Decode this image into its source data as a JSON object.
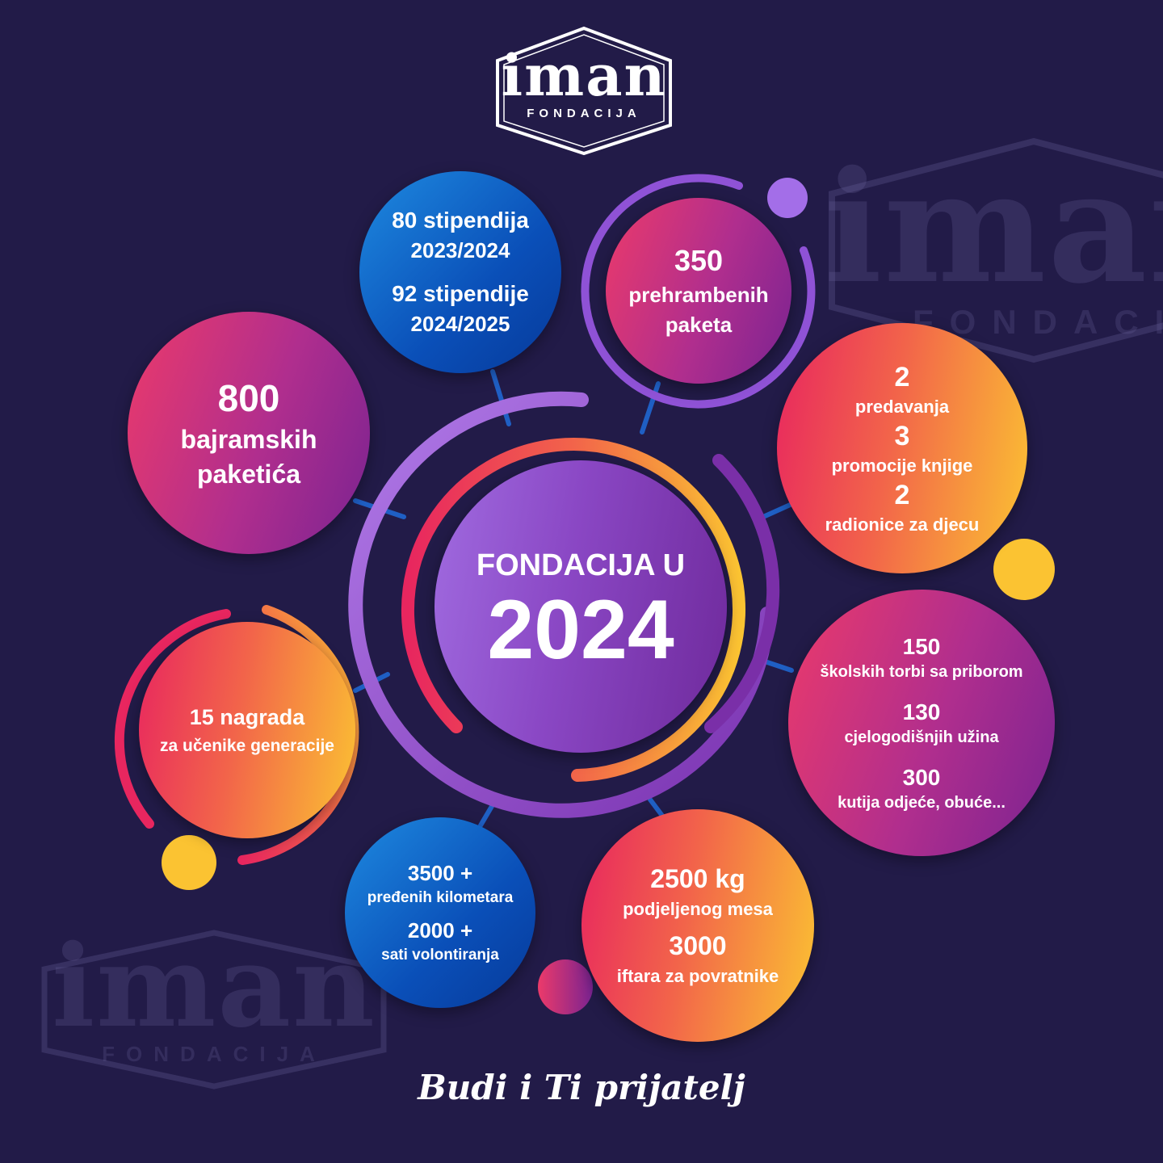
{
  "logo": {
    "word": "iman",
    "subtitle": "FONDACIJA"
  },
  "center": {
    "line1": "FONDACIJA U",
    "year": "2024"
  },
  "stats": {
    "scholarships": {
      "a": "80 stipendija",
      "b": "2023/2024",
      "c": "92 stipendije",
      "d": "2024/2025"
    },
    "food_packages": {
      "num": "350",
      "l1": "prehrambenih",
      "l2": "paketa"
    },
    "bajram": {
      "num": "800",
      "l1": "bajramskih",
      "l2": "paketića"
    },
    "events": {
      "n1": "2",
      "t1": "predavanja",
      "n2": "3",
      "t2": "promocije knjige",
      "n3": "2",
      "t3": "radionice za djecu"
    },
    "school": {
      "n1": "150",
      "t1": "školskih torbi sa priborom",
      "n2": "130",
      "t2": "cjelogodišnjih užina",
      "n3": "300",
      "t3": "kutija odjeće, obuće..."
    },
    "awards": {
      "l1": "15 nagrada",
      "l2": "za učenike generacije"
    },
    "volunteer": {
      "n1": "3500 +",
      "t1": "pređenih kilometara",
      "n2": "2000 +",
      "t2": "sati volontiranja"
    },
    "meat": {
      "n1": "2500 kg",
      "t1": "podjeljenog mesa",
      "n2": "3000",
      "t2": "iftara za povratnike"
    }
  },
  "tagline": "Budi i Ti prijatelj",
  "colors": {
    "background": "#221b48",
    "blue": "#0a4fb8",
    "pink": "#ec3a6a",
    "orange": "#f2644a",
    "yellow": "#fbc332",
    "purple": "#8a47c4",
    "connector": "#1f5fc4"
  }
}
